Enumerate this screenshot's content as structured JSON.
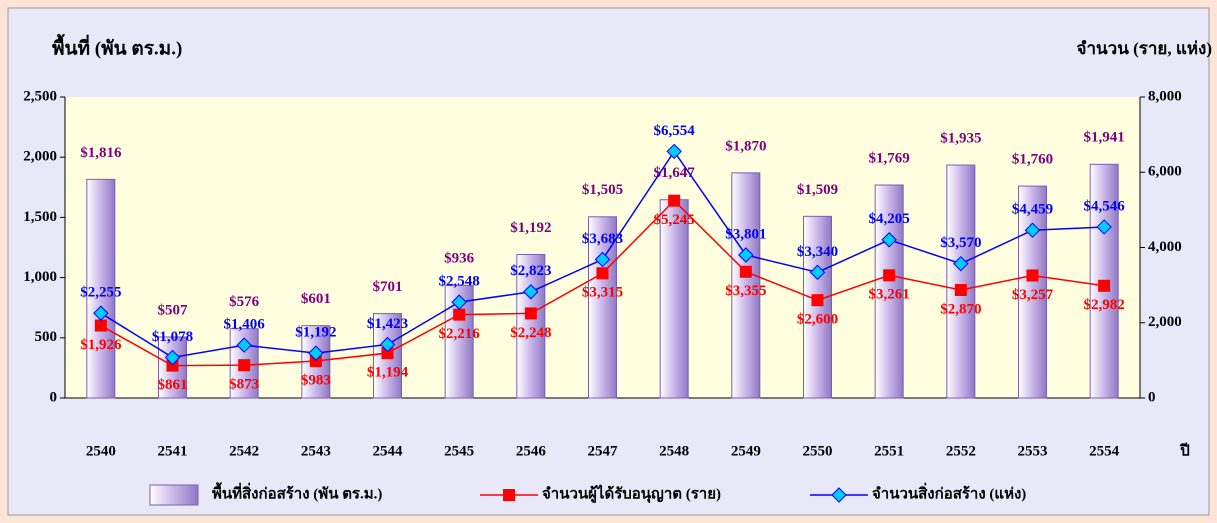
{
  "chart_data": {
    "type": "bar-line",
    "y_title": "พื้นที่ (พัน ตร.ม.)",
    "y2_title": "จำนวน (ราย, แห่ง)",
    "x_title": "ปี",
    "categories": [
      "2540",
      "2541",
      "2542",
      "2543",
      "2544",
      "2545",
      "2546",
      "2547",
      "2548",
      "2549",
      "2550",
      "2551",
      "2552",
      "2553",
      "2554"
    ],
    "ylim": [
      0,
      2500
    ],
    "yticks": [
      0,
      500,
      {
        "value": 1000,
        "label": "1,000"
      },
      {
        "value": 1500,
        "label": "1,500"
      },
      {
        "value": 2000,
        "label": "2,000"
      },
      {
        "value": 2500,
        "label": "2,500"
      }
    ],
    "y2lim": [
      0,
      8000
    ],
    "y2ticks": [
      0,
      {
        "value": 2000,
        "label": "2,000"
      },
      {
        "value": 4000,
        "label": "4,000"
      },
      {
        "value": 6000,
        "label": "6,000"
      },
      {
        "value": 8000,
        "label": "8,000"
      }
    ],
    "series": [
      {
        "name": "พื้นที่สิ่งก่อสร้าง (พัน ตร.ม.)",
        "type": "bar",
        "color": "#c9b6ea",
        "label_color": "#800080",
        "values": [
          1816,
          507,
          576,
          601,
          701,
          936,
          1192,
          1505,
          1647,
          1870,
          1509,
          1769,
          1935,
          1760,
          1941
        ],
        "value_labels": [
          "$1,816",
          "$507",
          "$576",
          "$601",
          "$701",
          "$936",
          "$1,192",
          "$1,505",
          "$1,647",
          "$1,870",
          "$1,509",
          "$1,769",
          "$1,935",
          "$1,760",
          "$1,941"
        ]
      },
      {
        "name": "จำนวนผู้ได้รับอนุญาต (ราย)",
        "type": "line",
        "marker": "square",
        "axis": "y2",
        "color": "#ff0000",
        "label_color": "#ff0000",
        "values": [
          1926,
          861,
          873,
          983,
          1194,
          2216,
          2248,
          3315,
          5245,
          3355,
          2600,
          3261,
          2870,
          3257,
          2982
        ],
        "value_labels": [
          "$1,926",
          "$861",
          "$873",
          "$983",
          "$1,194",
          "$2,216",
          "$2,248",
          "$3,315",
          "$5,245",
          "$3,355",
          "$2,600",
          "$3,261",
          "$2,870",
          "$3,257",
          "$2,982"
        ]
      },
      {
        "name": "จำนวนสิ่งก่อสร้าง (แห่ง)",
        "type": "line",
        "marker": "diamond",
        "axis": "y2",
        "color": "#0000ff",
        "label_color": "#0000ff",
        "values": [
          2255,
          1078,
          1406,
          1192,
          1423,
          2548,
          2823,
          3683,
          6554,
          3801,
          3340,
          4205,
          3570,
          4459,
          4546
        ],
        "value_labels": [
          "$2,255",
          "$1,078",
          "$1,406",
          "$1,192",
          "$1,423",
          "$2,548",
          "$2,823",
          "$3,683",
          "$6,554",
          "$3,801",
          "$3,340",
          "$4,205",
          "$3,570",
          "$4,459",
          "$4,546"
        ]
      }
    ]
  }
}
